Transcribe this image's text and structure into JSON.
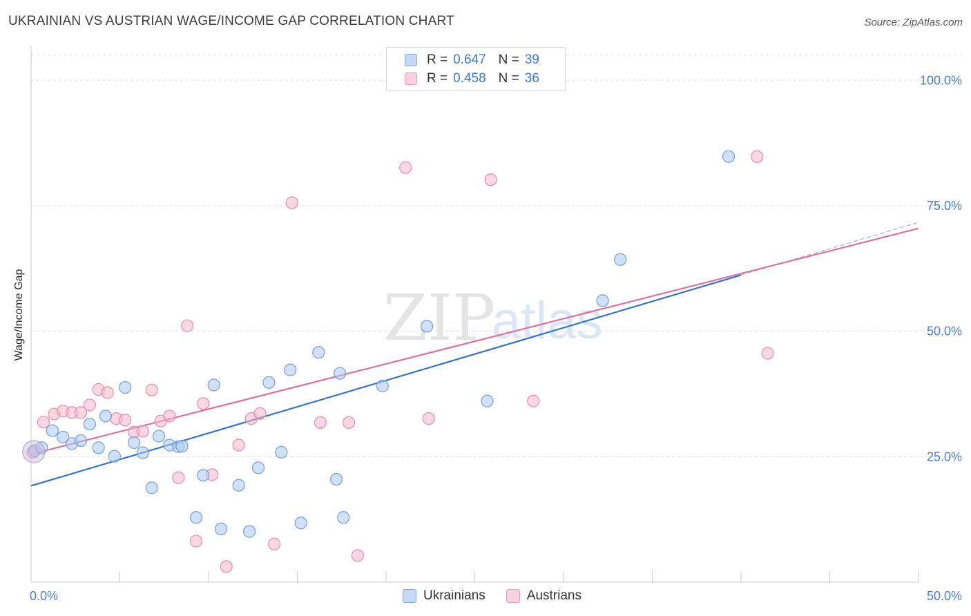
{
  "header": {
    "title": "UKRAINIAN VS AUSTRIAN WAGE/INCOME GAP CORRELATION CHART",
    "source": "Source: ZipAtlas.com"
  },
  "watermark": {
    "zip": "ZIP",
    "atlas": "atlas"
  },
  "legend": {
    "rows": [
      {
        "r_label": "R =",
        "r_value": "0.647",
        "n_label": "N =",
        "n_value": "39",
        "color": "#a9c8f2"
      },
      {
        "r_label": "R =",
        "r_value": "0.458",
        "n_label": "N =",
        "n_value": "36",
        "color": "#f6b8cb"
      }
    ]
  },
  "bottom_legend": {
    "ukrainians": "Ukrainians",
    "austrians": "Austrians"
  },
  "colors": {
    "blue_fill": "#a9c8f2",
    "blue_stroke": "#6e9fe0",
    "blue_line": "#2f74d0",
    "pink_fill": "#f6b8cb",
    "pink_stroke": "#e88aa6",
    "pink_line": "#e0709a",
    "axis_label": "#4a7fd0",
    "grid": "#dddddd"
  },
  "chart_data": {
    "type": "scatter",
    "title": "UKRAINIAN VS AUSTRIAN WAGE/INCOME GAP CORRELATION CHART",
    "xlabel": "",
    "ylabel": "Wage/Income Gap",
    "xlim": [
      0,
      50
    ],
    "ylim": [
      0,
      105
    ],
    "x_ticks": [
      "0.0%",
      "50.0%"
    ],
    "y_ticks": [
      {
        "value": 25,
        "label": "25.0%"
      },
      {
        "value": 50,
        "label": "50.0%"
      },
      {
        "value": 75,
        "label": "75.0%"
      },
      {
        "value": 100,
        "label": "100.0%"
      }
    ],
    "grid": true,
    "legend_position": "top-center",
    "series": [
      {
        "name": "Ukrainians",
        "color": "#a9c8f2",
        "points": [
          [
            0.2,
            26.2
          ],
          [
            0.6,
            26.8
          ],
          [
            1.2,
            30.2
          ],
          [
            1.8,
            28.9
          ],
          [
            2.3,
            27.6
          ],
          [
            2.8,
            28.2
          ],
          [
            3.3,
            31.5
          ],
          [
            3.8,
            26.8
          ],
          [
            4.2,
            33.1
          ],
          [
            4.7,
            25.1
          ],
          [
            5.3,
            38.8
          ],
          [
            5.8,
            27.8
          ],
          [
            6.3,
            25.8
          ],
          [
            6.8,
            18.8
          ],
          [
            7.2,
            29.1
          ],
          [
            7.8,
            27.3
          ],
          [
            8.3,
            27.0
          ],
          [
            8.5,
            27.1
          ],
          [
            9.3,
            12.9
          ],
          [
            9.7,
            21.3
          ],
          [
            10.3,
            39.3
          ],
          [
            10.7,
            10.6
          ],
          [
            11.7,
            19.3
          ],
          [
            12.3,
            10.1
          ],
          [
            12.8,
            22.8
          ],
          [
            13.4,
            39.8
          ],
          [
            14.1,
            25.9
          ],
          [
            14.6,
            42.3
          ],
          [
            15.2,
            11.8
          ],
          [
            16.2,
            45.8
          ],
          [
            17.2,
            20.5
          ],
          [
            17.4,
            41.6
          ],
          [
            17.6,
            12.9
          ],
          [
            19.8,
            39.1
          ],
          [
            22.3,
            51.0
          ],
          [
            25.7,
            36.1
          ],
          [
            32.2,
            56.1
          ],
          [
            33.2,
            64.3
          ],
          [
            39.3,
            84.8
          ]
        ]
      },
      {
        "name": "Austrians",
        "color": "#f6b8cb",
        "points": [
          [
            0.1,
            25.9
          ],
          [
            0.7,
            31.9
          ],
          [
            1.3,
            33.5
          ],
          [
            1.8,
            34.1
          ],
          [
            2.3,
            33.8
          ],
          [
            2.8,
            33.8
          ],
          [
            3.3,
            35.3
          ],
          [
            3.8,
            38.4
          ],
          [
            4.3,
            37.8
          ],
          [
            4.8,
            32.6
          ],
          [
            5.3,
            32.3
          ],
          [
            5.8,
            29.9
          ],
          [
            6.3,
            30.1
          ],
          [
            6.8,
            38.3
          ],
          [
            7.3,
            32.1
          ],
          [
            7.8,
            33.1
          ],
          [
            8.3,
            20.8
          ],
          [
            8.8,
            51.1
          ],
          [
            9.3,
            8.2
          ],
          [
            9.7,
            35.6
          ],
          [
            10.2,
            21.4
          ],
          [
            11.0,
            3.1
          ],
          [
            11.7,
            27.3
          ],
          [
            12.4,
            32.6
          ],
          [
            12.9,
            33.6
          ],
          [
            13.7,
            7.6
          ],
          [
            14.7,
            75.6
          ],
          [
            16.3,
            31.8
          ],
          [
            17.9,
            31.8
          ],
          [
            18.4,
            5.3
          ],
          [
            21.1,
            82.6
          ],
          [
            22.4,
            32.6
          ],
          [
            25.9,
            80.2
          ],
          [
            28.3,
            36.1
          ],
          [
            40.9,
            84.8
          ],
          [
            41.5,
            45.6
          ]
        ]
      }
    ],
    "trendlines": [
      {
        "series": "Ukrainians",
        "x": [
          0,
          40
        ],
        "y": [
          19.2,
          61.2
        ]
      },
      {
        "series": "Austrians",
        "x": [
          0,
          50
        ],
        "y": [
          25.5,
          70.5
        ]
      }
    ]
  }
}
